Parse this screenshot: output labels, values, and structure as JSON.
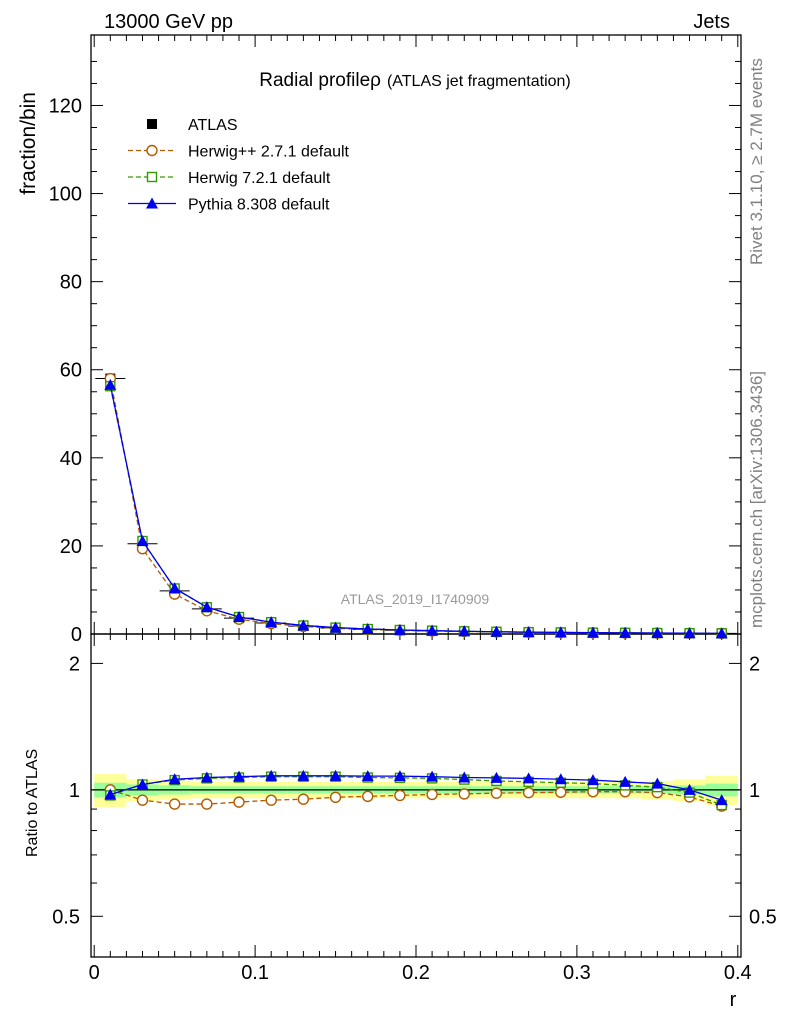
{
  "header": {
    "left": "13000 GeV pp",
    "right": "Jets"
  },
  "side": {
    "rivet": "Rivet 3.1.10, ≥ 2.7M events",
    "mcplots": "mcplots.cern.ch [arXiv:1306.3436]"
  },
  "chart_data": {
    "type": "line",
    "title": "Radial profile",
    "title_symbol": "ρ",
    "subtitle": "(ATLAS jet fragmentation)",
    "watermark": "ATLAS_2019_I1740909",
    "xlabel": "r",
    "ylabel": "fraction/bin",
    "ratio_ylabel": "Ratio to ATLAS",
    "xlim": [
      -0.002,
      0.402
    ],
    "ylim": [
      0,
      136
    ],
    "ratio_ylim": [
      0.4,
      2.35
    ],
    "ratio_log": true,
    "x_ticks": [
      "0",
      "0.1",
      "0.2",
      "0.3",
      "0.4"
    ],
    "y_ticks": [
      "0",
      "20",
      "40",
      "60",
      "80",
      "100",
      "120"
    ],
    "ratio_ticks": [
      "0.5",
      "1",
      "2"
    ],
    "legend_position": "top-left",
    "x": [
      0.01,
      0.03,
      0.05,
      0.07,
      0.09,
      0.11,
      0.13,
      0.15,
      0.17,
      0.19,
      0.21,
      0.23,
      0.25,
      0.27,
      0.29,
      0.31,
      0.33,
      0.35,
      0.37,
      0.39
    ],
    "data": {
      "name": "ATLAS",
      "values": [
        58.0,
        20.5,
        9.8,
        5.7,
        3.6,
        2.5,
        1.8,
        1.35,
        1.05,
        0.85,
        0.7,
        0.58,
        0.48,
        0.4,
        0.34,
        0.29,
        0.25,
        0.21,
        0.18,
        0.15
      ],
      "band_inner": [
        0.04,
        0.03,
        0.025,
        0.02,
        0.02,
        0.02,
        0.02,
        0.02,
        0.02,
        0.02,
        0.02,
        0.02,
        0.02,
        0.02,
        0.02,
        0.02,
        0.02,
        0.02,
        0.025,
        0.035
      ],
      "band_outer": [
        0.09,
        0.06,
        0.05,
        0.045,
        0.045,
        0.045,
        0.045,
        0.045,
        0.045,
        0.045,
        0.045,
        0.045,
        0.045,
        0.045,
        0.045,
        0.045,
        0.045,
        0.05,
        0.06,
        0.08
      ],
      "color": "#000000"
    },
    "series": [
      {
        "name": "Herwig++ 2.7.1 default",
        "color": "#b35900",
        "marker": "circle-open",
        "dashed": true,
        "ratio": [
          1.0,
          0.945,
          0.925,
          0.925,
          0.935,
          0.945,
          0.95,
          0.96,
          0.965,
          0.97,
          0.975,
          0.978,
          0.982,
          0.985,
          0.987,
          0.99,
          0.99,
          0.985,
          0.962,
          0.915
        ]
      },
      {
        "name": "Herwig 7.2.1 default",
        "color": "#339900",
        "marker": "square-open",
        "dashed": true,
        "ratio": [
          0.97,
          1.03,
          1.055,
          1.065,
          1.07,
          1.075,
          1.075,
          1.075,
          1.07,
          1.068,
          1.065,
          1.058,
          1.05,
          1.045,
          1.04,
          1.035,
          1.025,
          1.015,
          0.985,
          0.92
        ]
      },
      {
        "name": "Pythia 8.308 default",
        "color": "#0000ee",
        "marker": "triangle",
        "dashed": false,
        "ratio": [
          0.975,
          1.03,
          1.06,
          1.07,
          1.075,
          1.08,
          1.08,
          1.08,
          1.078,
          1.078,
          1.075,
          1.07,
          1.068,
          1.065,
          1.06,
          1.055,
          1.045,
          1.035,
          1.0,
          0.945
        ]
      }
    ]
  }
}
